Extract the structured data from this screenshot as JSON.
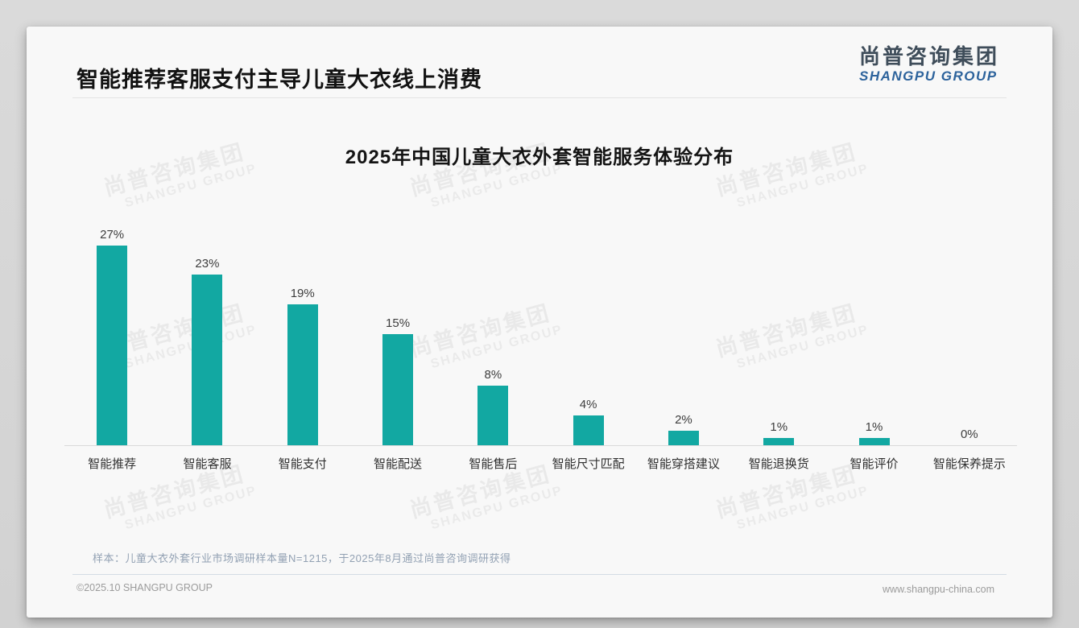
{
  "header": {
    "title": "智能推荐客服支付主导儿童大衣线上消费"
  },
  "logo": {
    "cn": "尚普咨询集团",
    "en": "SHANGPU GROUP"
  },
  "watermark": {
    "cn": "尚普咨询集团",
    "en": "SHANGPU GROUP"
  },
  "chart_data": {
    "type": "bar",
    "title": "2025年中国儿童大衣外套智能服务体验分布",
    "categories": [
      "智能推荐",
      "智能客服",
      "智能支付",
      "智能配送",
      "智能售后",
      "智能尺寸匹配",
      "智能穿搭建议",
      "智能退换货",
      "智能评价",
      "智能保养提示"
    ],
    "values": [
      27,
      23,
      19,
      15,
      8,
      4,
      2,
      1,
      1,
      0
    ],
    "unit": "%",
    "data_labels": true,
    "bar_color": "#12a8a2",
    "ylim": [
      0,
      30
    ],
    "grid": false,
    "legend": false,
    "xlabel": "",
    "ylabel": ""
  },
  "footer": {
    "sample_note": "样本：儿童大衣外套行业市场调研样本量N=1215，于2025年8月通过尚普咨询调研获得",
    "copyright": "©2025.10 SHANGPU GROUP",
    "website": "www.shangpu-china.com"
  }
}
